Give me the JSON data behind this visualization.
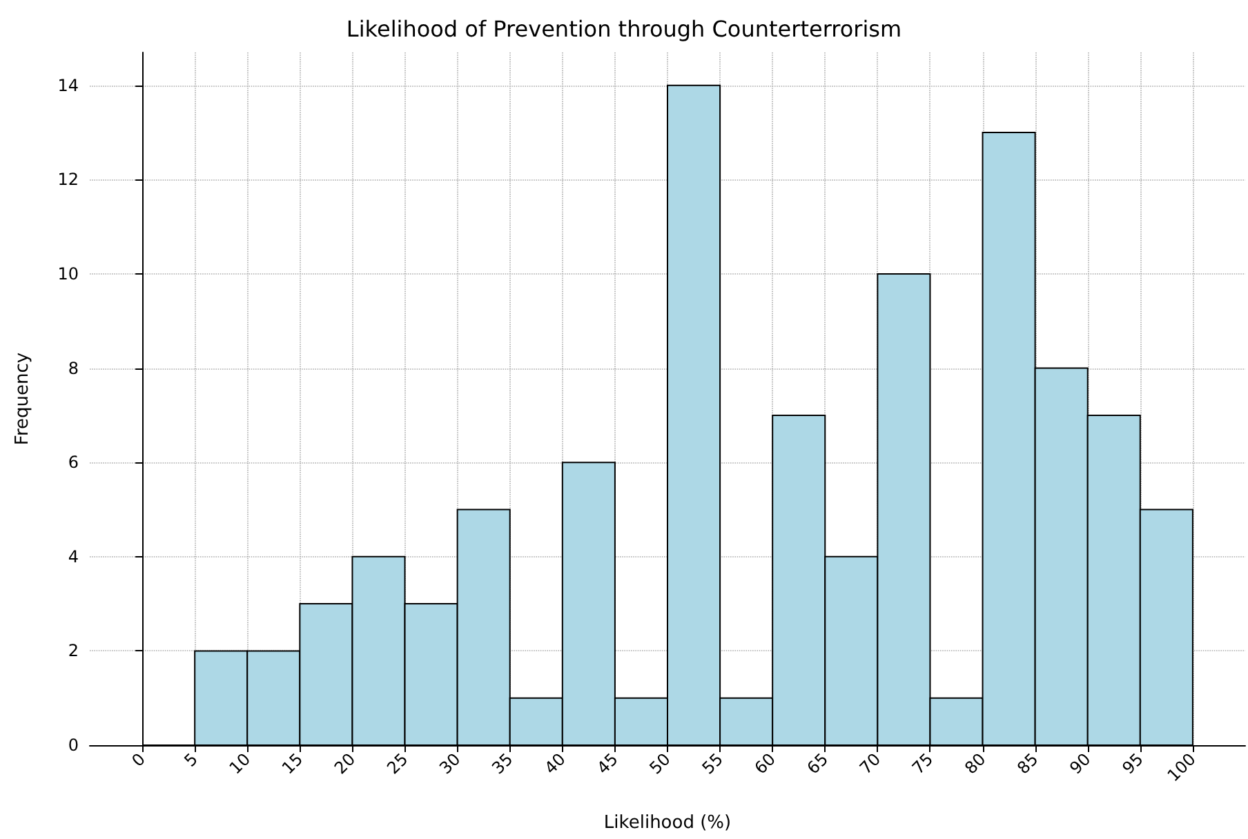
{
  "chart_data": {
    "type": "histogram",
    "title": "Likelihood of Prevention through Counterterrorism",
    "xlabel": "Likelihood (%)",
    "ylabel": "Frequency",
    "bins": [
      0,
      5,
      10,
      15,
      20,
      25,
      30,
      35,
      40,
      45,
      50,
      55,
      60,
      65,
      70,
      75,
      80,
      85,
      90,
      95,
      100
    ],
    "values": [
      0,
      2,
      2,
      3,
      4,
      3,
      5,
      1,
      6,
      1,
      14,
      1,
      7,
      4,
      10,
      1,
      13,
      8,
      7,
      5
    ],
    "color": "#add8e6",
    "xlim": [
      -5,
      105
    ],
    "xticks": [
      0,
      5,
      10,
      15,
      20,
      25,
      30,
      35,
      40,
      45,
      50,
      55,
      60,
      65,
      70,
      75,
      80,
      85,
      90,
      95,
      100
    ],
    "ylim": [
      0,
      14.7
    ],
    "yticks": [
      0,
      2,
      4,
      6,
      8,
      10,
      12,
      14
    ],
    "grid": true
  }
}
